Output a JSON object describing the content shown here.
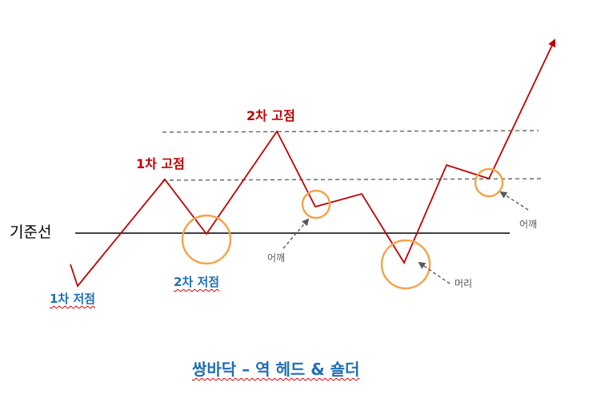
{
  "title": "쌍바닥 – 역 헤드 & 숄더",
  "baseline_label": "기준선",
  "labels": {
    "first_low": "1차 저점",
    "second_low": "2차 저점",
    "first_high": "1차 고점",
    "second_high": "2차 고점",
    "shoulder_left": "어깨",
    "shoulder_right": "어깨",
    "head": "머리"
  },
  "colors": {
    "price_line": "#c00000",
    "peak_text": "#c00000",
    "trough_text": "#1f6fb5",
    "circle": "#f4a24a",
    "dashed_line": "#595959",
    "baseline": "#000000",
    "annotation_text": "#595959"
  }
}
